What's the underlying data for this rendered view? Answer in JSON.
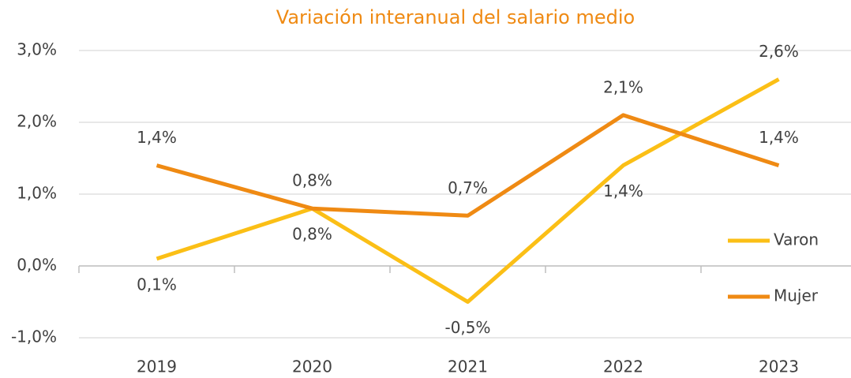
{
  "chart_data": {
    "type": "line",
    "title": "Variación interanual del salario medio",
    "categories": [
      "2019",
      "2020",
      "2021",
      "2022",
      "2023"
    ],
    "series": [
      {
        "name": "Varon",
        "color": "#fbbf16",
        "values": [
          0.1,
          0.8,
          -0.5,
          1.4,
          2.6
        ],
        "value_labels": [
          "0,1%",
          "0,8%",
          "-0,5%",
          "1,4%",
          "2,6%"
        ]
      },
      {
        "name": "Mujer",
        "color": "#ef8a13",
        "values": [
          1.4,
          0.8,
          0.7,
          2.1,
          1.4
        ],
        "value_labels": [
          "1,4%",
          "0,8%",
          "0,7%",
          "2,1%",
          "1,4%"
        ]
      }
    ],
    "ylim": [
      -1,
      3
    ],
    "yticks": [
      {
        "value": -1,
        "label": "-1,0%"
      },
      {
        "value": 0,
        "label": "0,0%"
      },
      {
        "value": 1,
        "label": "1,0%"
      },
      {
        "value": 2,
        "label": "2,0%"
      },
      {
        "value": 3,
        "label": "3,0%"
      }
    ],
    "grid": true,
    "legend": "right"
  }
}
